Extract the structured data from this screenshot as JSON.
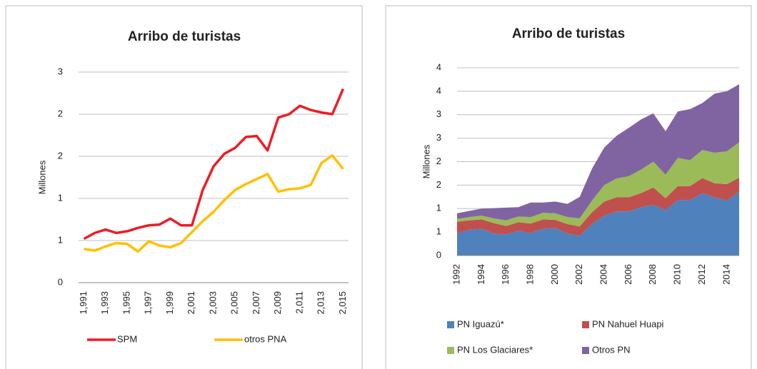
{
  "chart_data": [
    {
      "type": "line",
      "title": "Arribo de turistas",
      "y_label": "Millones",
      "categories": [
        "1,991",
        null,
        "1,993",
        null,
        "1,995",
        null,
        "1,997",
        null,
        "1,999",
        null,
        "2,001",
        null,
        "2,003",
        null,
        "2,005",
        null,
        "2,007",
        null,
        "2,009",
        null,
        "2,011",
        null,
        "2,013",
        null,
        "2,015"
      ],
      "series": [
        {
          "name": "SPM",
          "color": "#ee1c25",
          "values": [
            0.52,
            0.59,
            0.63,
            0.59,
            0.61,
            0.65,
            0.68,
            0.69,
            0.76,
            0.68,
            0.68,
            1.1,
            1.38,
            1.53,
            1.6,
            1.73,
            1.74,
            1.57,
            1.96,
            2.0,
            2.1,
            2.05,
            2.02,
            2.0,
            2.3
          ]
        },
        {
          "name": "otros PNA",
          "color": "#ffc000",
          "values": [
            0.4,
            0.38,
            0.43,
            0.47,
            0.46,
            0.37,
            0.49,
            0.44,
            0.42,
            0.47,
            0.6,
            0.73,
            0.84,
            0.98,
            1.1,
            1.17,
            1.23,
            1.29,
            1.08,
            1.11,
            1.12,
            1.16,
            1.42,
            1.51,
            1.35
          ]
        }
      ],
      "ylim": [
        0,
        2.5
      ],
      "yticks": [
        0,
        {
          "value": 0.5,
          "label": "1"
        },
        1,
        {
          "value": 1.5,
          "label": "2"
        },
        2,
        {
          "value": 2.5,
          "label": "3"
        }
      ],
      "grid": true,
      "legend": "bottom"
    },
    {
      "type": "stacked_area",
      "title": "Arribo de turistas",
      "y_label": "Millones",
      "categories": [
        "1992",
        null,
        "1994",
        null,
        "1996",
        null,
        "1998",
        null,
        "2000",
        null,
        "2002",
        null,
        "2004",
        null,
        "2006",
        null,
        "2008",
        null,
        "2010",
        null,
        "2012",
        null,
        "2014",
        null
      ],
      "series": [
        {
          "name": "PN Iguazú*",
          "color": "#4f81bd",
          "values": [
            0.47,
            0.55,
            0.57,
            0.47,
            0.45,
            0.53,
            0.48,
            0.57,
            0.59,
            0.47,
            0.42,
            0.67,
            0.85,
            0.94,
            0.94,
            1.03,
            1.08,
            0.97,
            1.18,
            1.18,
            1.33,
            1.24,
            1.17,
            1.36
          ]
        },
        {
          "name": "PN Nahuel Huapi",
          "color": "#c0504d",
          "values": [
            0.25,
            0.2,
            0.2,
            0.22,
            0.18,
            0.18,
            0.2,
            0.2,
            0.17,
            0.2,
            0.2,
            0.25,
            0.3,
            0.3,
            0.3,
            0.3,
            0.37,
            0.25,
            0.3,
            0.3,
            0.32,
            0.3,
            0.35,
            0.3
          ]
        },
        {
          "name": "PN Los Glaciares*",
          "color": "#9bbb59",
          "values": [
            0.06,
            0.07,
            0.08,
            0.1,
            0.12,
            0.12,
            0.14,
            0.14,
            0.14,
            0.15,
            0.17,
            0.25,
            0.35,
            0.4,
            0.45,
            0.5,
            0.55,
            0.5,
            0.6,
            0.55,
            0.6,
            0.65,
            0.7,
            0.75
          ]
        },
        {
          "name": "Otros PN",
          "color": "#8064a2",
          "values": [
            0.12,
            0.13,
            0.15,
            0.22,
            0.27,
            0.2,
            0.31,
            0.22,
            0.25,
            0.28,
            0.46,
            0.68,
            0.8,
            0.91,
            1.03,
            1.07,
            1.03,
            0.93,
            0.99,
            1.09,
            1.0,
            1.26,
            1.28,
            1.24
          ]
        }
      ],
      "ylim": [
        0,
        4
      ],
      "yticks": [
        0,
        {
          "value": 0.5,
          "label": "1"
        },
        1,
        {
          "value": 1.5,
          "label": "2"
        },
        2,
        {
          "value": 2.5,
          "label": "3"
        },
        3,
        {
          "value": 3.5,
          "label": "4"
        },
        4
      ],
      "grid": true,
      "legend": "bottom"
    }
  ]
}
